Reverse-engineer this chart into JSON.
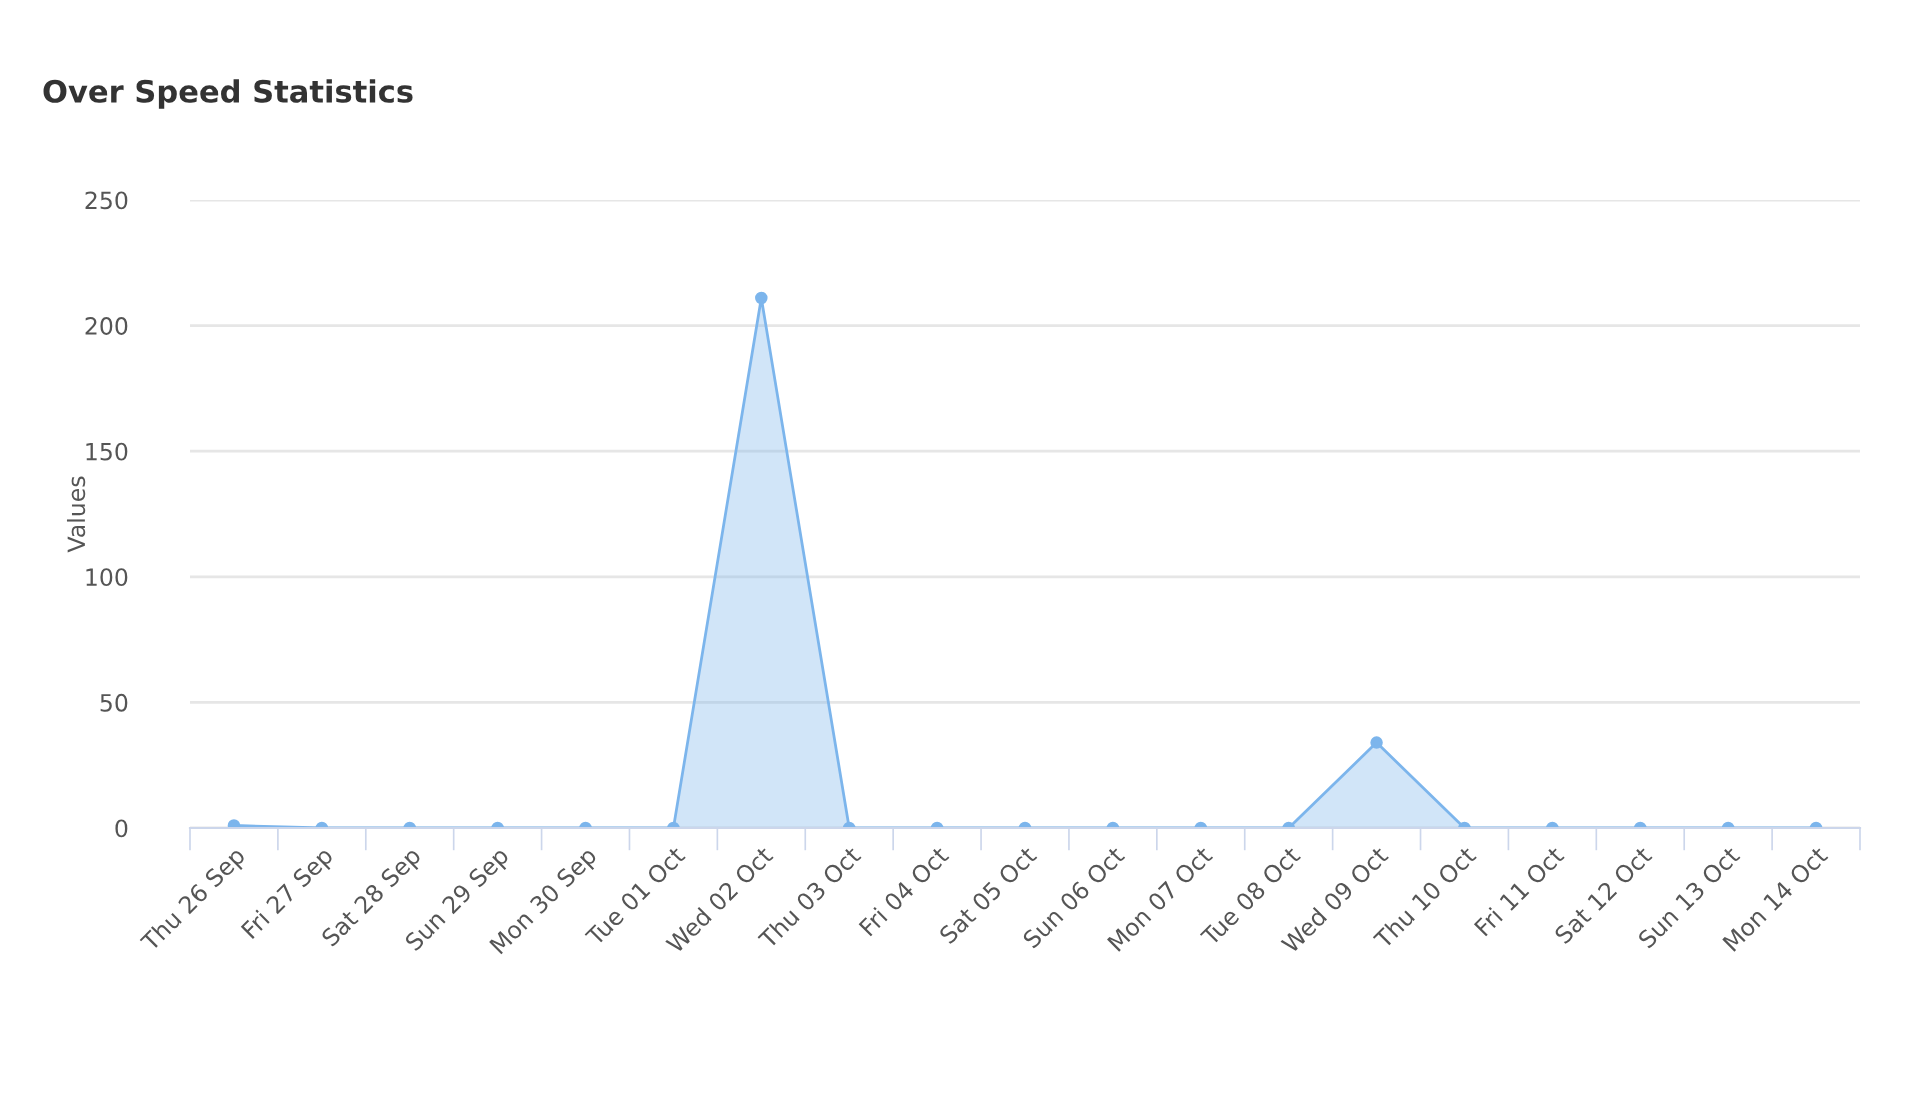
{
  "chart_data": {
    "type": "area",
    "title": "Over Speed Statistics",
    "ylabel": "Values",
    "categories": [
      "Thu 26 Sep",
      "Fri 27 Sep",
      "Sat 28 Sep",
      "Sun 29 Sep",
      "Mon 30 Sep",
      "Tue 01 Oct",
      "Wed 02 Oct",
      "Thu 03 Oct",
      "Fri 04 Oct",
      "Sat 05 Oct",
      "Sun 06 Oct",
      "Mon 07 Oct",
      "Tue 08 Oct",
      "Wed 09 Oct",
      "Thu 10 Oct",
      "Fri 11 Oct",
      "Sat 12 Oct",
      "Sun 13 Oct",
      "Mon 14 Oct"
    ],
    "series": [
      {
        "color": "#7cb5ec",
        "values": [
          1,
          0,
          0,
          0,
          0,
          0,
          211,
          0,
          0,
          0,
          0,
          0,
          0,
          34,
          0,
          0,
          0,
          0,
          0
        ]
      }
    ],
    "ylim": [
      0,
      250
    ],
    "yticks": [
      0,
      50,
      100,
      150,
      200,
      250
    ],
    "grid": "y",
    "marker": "circle",
    "legend": false
  }
}
